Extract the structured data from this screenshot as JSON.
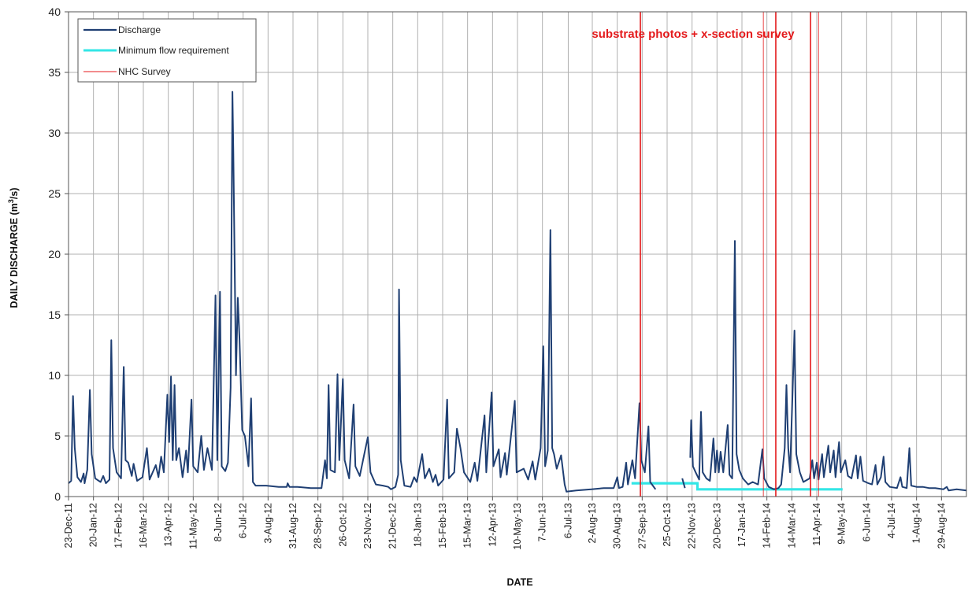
{
  "chart_data": {
    "type": "line",
    "xlabel": "DATE",
    "ylabel": "DAILY DISCHARGE (m³/s)",
    "ylabel_parts": [
      "DAILY DISCHARGE  (m",
      "3",
      "/s)"
    ],
    "ylim": [
      0,
      40
    ],
    "yticks": [
      0,
      5,
      10,
      15,
      20,
      25,
      30,
      35,
      40
    ],
    "x_start": "2011-12-23",
    "x_end": "2014-09-26",
    "xticks": [
      "23-Dec-11",
      "20-Jan-12",
      "17-Feb-12",
      "16-Mar-12",
      "13-Apr-12",
      "11-May-12",
      "8-Jun-12",
      "6-Jul-12",
      "3-Aug-12",
      "31-Aug-12",
      "28-Sep-12",
      "26-Oct-12",
      "23-Nov-12",
      "21-Dec-12",
      "18-Jan-13",
      "15-Feb-13",
      "15-Mar-13",
      "12-Apr-13",
      "10-May-13",
      "7-Jun-13",
      "6-Jul-13",
      "2-Aug-13",
      "30-Aug-13",
      "27-Sep-13",
      "25-Oct-13",
      "22-Nov-13",
      "20-Dec-13",
      "17-Jan-14",
      "14-Feb-14",
      "14-Mar-14",
      "11-Apr-14",
      "9-May-14",
      "6-Jun-14",
      "4-Jul-14",
      "1-Aug-14",
      "29-Aug-14"
    ],
    "grid": true,
    "legend_position": "top-left",
    "annotation": "substrate photos + x-section survey",
    "series": [
      {
        "name": "Discharge",
        "color": "#1f3f73",
        "points": [
          [
            "2011-12-23",
            1.1
          ],
          [
            "2011-12-26",
            1.3
          ],
          [
            "2011-12-28",
            8.3
          ],
          [
            "2011-12-30",
            4.0
          ],
          [
            "2012-01-02",
            1.6
          ],
          [
            "2012-01-06",
            1.2
          ],
          [
            "2012-01-09",
            1.9
          ],
          [
            "2012-01-10",
            1.1
          ],
          [
            "2012-01-13",
            2.2
          ],
          [
            "2012-01-16",
            8.8
          ],
          [
            "2012-01-18",
            3.5
          ],
          [
            "2012-01-22",
            1.5
          ],
          [
            "2012-01-28",
            1.2
          ],
          [
            "2012-01-31",
            1.7
          ],
          [
            "2012-02-03",
            1.1
          ],
          [
            "2012-02-07",
            1.4
          ],
          [
            "2012-02-09",
            12.9
          ],
          [
            "2012-02-11",
            4.0
          ],
          [
            "2012-02-15",
            2.0
          ],
          [
            "2012-02-20",
            1.5
          ],
          [
            "2012-02-23",
            10.7
          ],
          [
            "2012-02-25",
            3.0
          ],
          [
            "2012-02-28",
            2.8
          ],
          [
            "2012-03-03",
            1.7
          ],
          [
            "2012-03-05",
            2.7
          ],
          [
            "2012-03-09",
            1.3
          ],
          [
            "2012-03-15",
            1.6
          ],
          [
            "2012-03-20",
            4.0
          ],
          [
            "2012-03-23",
            1.4
          ],
          [
            "2012-03-30",
            2.6
          ],
          [
            "2012-04-02",
            1.6
          ],
          [
            "2012-04-05",
            3.3
          ],
          [
            "2012-04-08",
            2.0
          ],
          [
            "2012-04-12",
            8.4
          ],
          [
            "2012-04-14",
            4.5
          ],
          [
            "2012-04-16",
            9.9
          ],
          [
            "2012-04-18",
            3.0
          ],
          [
            "2012-04-20",
            9.2
          ],
          [
            "2012-04-22",
            3.0
          ],
          [
            "2012-04-25",
            4.0
          ],
          [
            "2012-04-29",
            1.6
          ],
          [
            "2012-05-03",
            3.8
          ],
          [
            "2012-05-05",
            2.0
          ],
          [
            "2012-05-09",
            8.0
          ],
          [
            "2012-05-11",
            2.5
          ],
          [
            "2012-05-16",
            2.0
          ],
          [
            "2012-05-20",
            5.0
          ],
          [
            "2012-05-23",
            2.2
          ],
          [
            "2012-05-27",
            4.0
          ],
          [
            "2012-06-01",
            2.2
          ],
          [
            "2012-06-05",
            16.6
          ],
          [
            "2012-06-07",
            3.0
          ],
          [
            "2012-06-10",
            16.9
          ],
          [
            "2012-06-12",
            2.5
          ],
          [
            "2012-06-16",
            2.1
          ],
          [
            "2012-06-19",
            2.8
          ],
          [
            "2012-06-22",
            9.0
          ],
          [
            "2012-06-24",
            33.4
          ],
          [
            "2012-06-25",
            28.7
          ],
          [
            "2012-06-28",
            10.0
          ],
          [
            "2012-06-30",
            16.4
          ],
          [
            "2012-07-02",
            13.0
          ],
          [
            "2012-07-05",
            5.5
          ],
          [
            "2012-07-08",
            5.0
          ],
          [
            "2012-07-12",
            2.5
          ],
          [
            "2012-07-15",
            8.1
          ],
          [
            "2012-07-17",
            1.2
          ],
          [
            "2012-07-20",
            0.9
          ],
          [
            "2012-08-01",
            0.9
          ],
          [
            "2012-08-15",
            0.8
          ],
          [
            "2012-08-24",
            0.8
          ],
          [
            "2012-08-25",
            1.1
          ],
          [
            "2012-08-27",
            0.8
          ],
          [
            "2012-09-05",
            0.8
          ],
          [
            "2012-09-20",
            0.7
          ],
          [
            "2012-10-02",
            0.7
          ],
          [
            "2012-10-06",
            3.0
          ],
          [
            "2012-10-08",
            1.5
          ],
          [
            "2012-10-10",
            9.2
          ],
          [
            "2012-10-12",
            2.2
          ],
          [
            "2012-10-17",
            2.0
          ],
          [
            "2012-10-20",
            10.1
          ],
          [
            "2012-10-22",
            3.0
          ],
          [
            "2012-10-26",
            9.7
          ],
          [
            "2012-10-28",
            3.0
          ],
          [
            "2012-11-02",
            1.5
          ],
          [
            "2012-11-07",
            7.6
          ],
          [
            "2012-11-09",
            2.5
          ],
          [
            "2012-11-14",
            1.7
          ],
          [
            "2012-11-19",
            3.5
          ],
          [
            "2012-11-23",
            4.9
          ],
          [
            "2012-11-26",
            2.0
          ],
          [
            "2012-12-02",
            1.0
          ],
          [
            "2012-12-10",
            0.9
          ],
          [
            "2012-12-16",
            0.8
          ],
          [
            "2012-12-19",
            0.6
          ],
          [
            "2012-12-24",
            0.8
          ],
          [
            "2012-12-27",
            1.8
          ],
          [
            "2012-12-28",
            17.1
          ],
          [
            "2012-12-30",
            3.0
          ],
          [
            "2013-01-03",
            0.9
          ],
          [
            "2013-01-10",
            0.8
          ],
          [
            "2013-01-14",
            1.6
          ],
          [
            "2013-01-17",
            1.2
          ],
          [
            "2013-01-23",
            3.5
          ],
          [
            "2013-01-26",
            1.5
          ],
          [
            "2013-01-31",
            2.3
          ],
          [
            "2013-02-04",
            1.2
          ],
          [
            "2013-02-07",
            1.8
          ],
          [
            "2013-02-10",
            0.9
          ],
          [
            "2013-02-16",
            1.4
          ],
          [
            "2013-02-20",
            8.0
          ],
          [
            "2013-02-22",
            1.5
          ],
          [
            "2013-02-28",
            2.0
          ],
          [
            "2013-03-03",
            5.6
          ],
          [
            "2013-03-07",
            4.0
          ],
          [
            "2013-03-11",
            2.0
          ],
          [
            "2013-03-18",
            1.2
          ],
          [
            "2013-03-23",
            2.8
          ],
          [
            "2013-03-26",
            1.3
          ],
          [
            "2013-04-03",
            6.7
          ],
          [
            "2013-04-05",
            2.0
          ],
          [
            "2013-04-11",
            8.6
          ],
          [
            "2013-04-13",
            2.5
          ],
          [
            "2013-04-19",
            3.9
          ],
          [
            "2013-04-21",
            1.6
          ],
          [
            "2013-04-26",
            3.6
          ],
          [
            "2013-04-28",
            1.8
          ],
          [
            "2013-05-07",
            7.9
          ],
          [
            "2013-05-09",
            2.0
          ],
          [
            "2013-05-17",
            2.3
          ],
          [
            "2013-05-22",
            1.4
          ],
          [
            "2013-05-27",
            2.9
          ],
          [
            "2013-05-30",
            1.4
          ],
          [
            "2013-06-05",
            4.0
          ],
          [
            "2013-06-08",
            12.4
          ],
          [
            "2013-06-10",
            2.5
          ],
          [
            "2013-06-13",
            3.8
          ],
          [
            "2013-06-16",
            22.0
          ],
          [
            "2013-06-18",
            4.0
          ],
          [
            "2013-06-20",
            3.5
          ],
          [
            "2013-06-23",
            2.3
          ],
          [
            "2013-06-28",
            3.4
          ],
          [
            "2013-07-02",
            1.0
          ],
          [
            "2013-07-04",
            0.4
          ],
          [
            "2013-07-15",
            0.5
          ],
          [
            "2013-08-01",
            0.6
          ],
          [
            "2013-08-15",
            0.7
          ],
          [
            "2013-08-26",
            0.7
          ],
          [
            "2013-08-30",
            1.6
          ],
          [
            "2013-09-01",
            0.7
          ],
          [
            "2013-09-05",
            0.8
          ],
          [
            "2013-09-09",
            2.8
          ],
          [
            "2013-09-11",
            1.0
          ],
          [
            "2013-09-16",
            3.0
          ],
          [
            "2013-09-19",
            1.5
          ],
          [
            "2013-09-24",
            7.7
          ],
          [
            "2013-09-26",
            3.0
          ],
          [
            "2013-09-30",
            2.0
          ],
          [
            "2013-10-04",
            5.8
          ],
          [
            "2013-10-06",
            1.2
          ],
          [
            "2013-10-12",
            0.6
          ]
        ],
        "segments_after_gaps": [
          [
            [
              "2013-11-11",
              1.5
            ],
            [
              "2013-11-14",
              0.7
            ]
          ],
          [
            [
              "2013-11-20",
              3.2
            ],
            [
              "2013-11-21",
              6.3
            ],
            [
              "2013-11-23",
              2.5
            ],
            [
              "2013-11-26",
              2.0
            ],
            [
              "2013-11-30",
              1.4
            ],
            [
              "2013-12-02",
              7.0
            ],
            [
              "2013-12-04",
              2.0
            ],
            [
              "2013-12-08",
              1.5
            ],
            [
              "2013-12-12",
              1.3
            ],
            [
              "2013-12-16",
              4.8
            ],
            [
              "2013-12-18",
              2.0
            ],
            [
              "2013-12-20",
              3.8
            ],
            [
              "2013-12-22",
              2.0
            ],
            [
              "2013-12-24",
              3.7
            ],
            [
              "2013-12-27",
              2.0
            ],
            [
              "2014-01-01",
              5.9
            ],
            [
              "2014-01-03",
              1.8
            ],
            [
              "2014-01-06",
              1.5
            ],
            [
              "2014-01-09",
              21.1
            ],
            [
              "2014-01-11",
              3.5
            ],
            [
              "2014-01-14",
              2.2
            ],
            [
              "2014-01-18",
              1.5
            ],
            [
              "2014-01-24",
              1.0
            ],
            [
              "2014-01-29",
              1.2
            ],
            [
              "2014-02-04",
              1.0
            ],
            [
              "2014-02-09",
              3.9
            ],
            [
              "2014-02-11",
              1.5
            ],
            [
              "2014-02-16",
              0.8
            ],
            [
              "2014-02-22",
              0.6
            ],
            [
              "2014-02-27",
              0.7
            ],
            [
              "2014-03-02",
              1.0
            ],
            [
              "2014-03-06",
              4.0
            ],
            [
              "2014-03-08",
              9.2
            ],
            [
              "2014-03-10",
              4.0
            ],
            [
              "2014-03-12",
              2.0
            ],
            [
              "2014-03-17",
              13.7
            ],
            [
              "2014-03-19",
              3.5
            ],
            [
              "2014-03-23",
              2.0
            ],
            [
              "2014-03-27",
              1.2
            ],
            [
              "2014-04-03",
              1.5
            ],
            [
              "2014-04-06",
              3.0
            ],
            [
              "2014-04-08",
              1.5
            ],
            [
              "2014-04-11",
              2.8
            ],
            [
              "2014-04-13",
              1.4
            ],
            [
              "2014-04-17",
              3.5
            ],
            [
              "2014-04-19",
              1.6
            ],
            [
              "2014-04-24",
              4.2
            ],
            [
              "2014-04-26",
              2.0
            ],
            [
              "2014-04-30",
              3.8
            ],
            [
              "2014-05-02",
              1.6
            ],
            [
              "2014-05-06",
              4.5
            ],
            [
              "2014-05-08",
              2.0
            ],
            [
              "2014-05-13",
              3.0
            ],
            [
              "2014-05-16",
              1.7
            ],
            [
              "2014-05-20",
              1.5
            ],
            [
              "2014-05-25",
              3.4
            ],
            [
              "2014-05-27",
              1.5
            ],
            [
              "2014-05-30",
              3.3
            ],
            [
              "2014-06-02",
              1.3
            ],
            [
              "2014-06-08",
              1.1
            ],
            [
              "2014-06-12",
              1.0
            ],
            [
              "2014-06-16",
              2.6
            ],
            [
              "2014-06-18",
              1.0
            ],
            [
              "2014-06-22",
              1.6
            ],
            [
              "2014-06-25",
              3.3
            ],
            [
              "2014-06-27",
              1.2
            ],
            [
              "2014-07-02",
              0.8
            ],
            [
              "2014-07-10",
              0.7
            ],
            [
              "2014-07-14",
              1.6
            ],
            [
              "2014-07-16",
              0.8
            ],
            [
              "2014-07-21",
              0.7
            ],
            [
              "2014-07-24",
              4.0
            ],
            [
              "2014-07-26",
              0.9
            ],
            [
              "2014-08-01",
              0.8
            ],
            [
              "2014-08-08",
              0.8
            ],
            [
              "2014-08-15",
              0.7
            ],
            [
              "2014-08-22",
              0.7
            ],
            [
              "2014-08-31",
              0.6
            ],
            [
              "2014-09-04",
              0.8
            ],
            [
              "2014-09-06",
              0.5
            ],
            [
              "2014-09-15",
              0.6
            ],
            [
              "2014-09-26",
              0.5
            ]
          ]
        ]
      },
      {
        "name": "Minimum flow requirement",
        "color": "#33e6e6",
        "points": [
          [
            "2013-09-15",
            1.1
          ],
          [
            "2013-11-28",
            1.1
          ],
          [
            "2013-11-28",
            0.6
          ],
          [
            "2014-05-10",
            0.6
          ]
        ]
      },
      {
        "name": "NHC Survey",
        "color": "#e41a1c",
        "dates": [
          "2013-09-25",
          "2014-02-24",
          "2014-04-04"
        ]
      }
    ],
    "thin_survey_lines": [
      "2014-02-10",
      "2014-04-13"
    ]
  }
}
